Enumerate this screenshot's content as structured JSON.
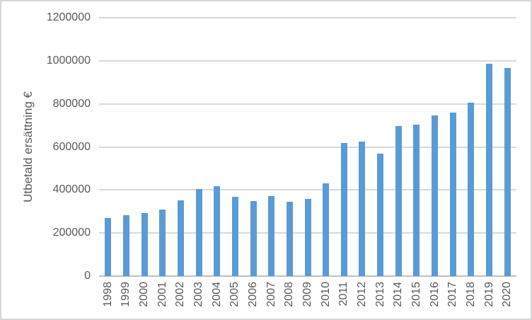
{
  "chart_data": {
    "type": "bar",
    "title": "",
    "xlabel": "",
    "ylabel": "Utbetald ersättning €",
    "categories": [
      "1998",
      "1999",
      "2000",
      "2001",
      "2002",
      "2003",
      "2004",
      "2005",
      "2006",
      "2007",
      "2008",
      "2009",
      "2010",
      "2011",
      "2012",
      "2013",
      "2014",
      "2015",
      "2016",
      "2017",
      "2018",
      "2019",
      "2020"
    ],
    "values": [
      271000,
      284000,
      292000,
      308000,
      352000,
      403000,
      416000,
      367000,
      349000,
      371000,
      345000,
      357000,
      431000,
      618000,
      626000,
      568000,
      697000,
      704000,
      746000,
      761000,
      805000,
      986000,
      965000
    ],
    "ylim": [
      0,
      1200000
    ],
    "yticks": [
      0,
      200000,
      400000,
      600000,
      800000,
      1000000,
      1200000
    ],
    "ytick_labels": [
      "0",
      "200000",
      "400000",
      "600000",
      "800000",
      "1000000",
      "1200000"
    ],
    "grid": "horizontal",
    "legend_position": "none"
  },
  "colors": {
    "bar": "#5b9bd5",
    "gridline": "#d9d9d9",
    "axis_line": "#bfbfbf",
    "label_text": "#595959",
    "canvas_border": "#d6d6d6",
    "background": "#ffffff"
  }
}
